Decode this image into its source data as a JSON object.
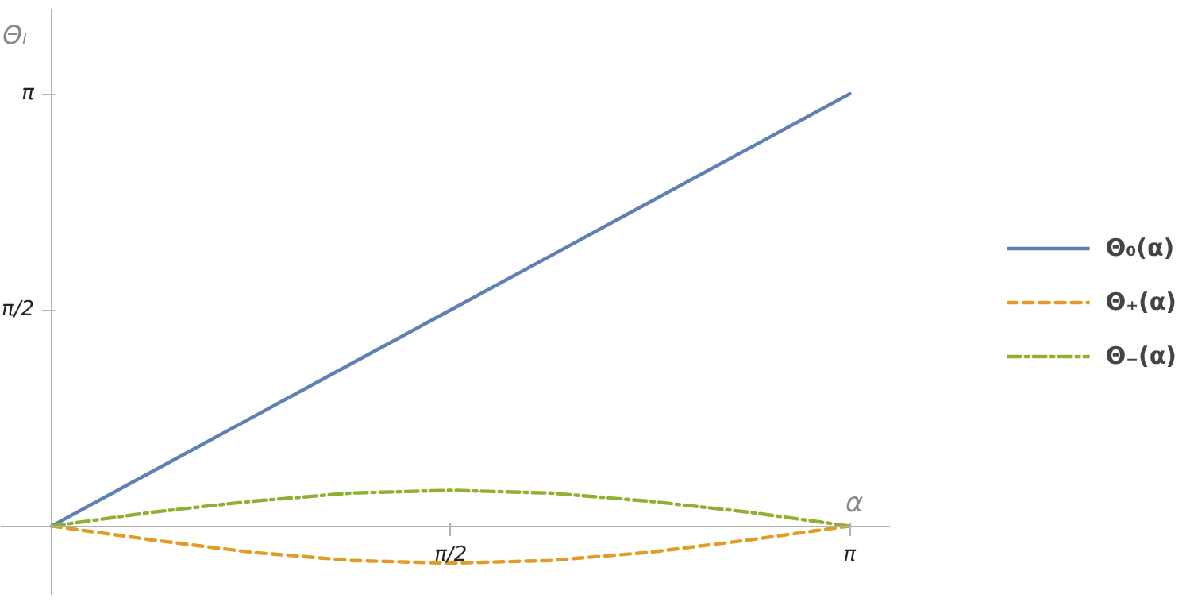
{
  "chart_data": {
    "type": "line",
    "xlabel": "α",
    "ylabel": "Θₗ",
    "x": [
      0,
      0.393,
      0.785,
      1.178,
      1.571,
      1.963,
      2.356,
      2.749,
      3.142
    ],
    "xlim": [
      -0.2,
      3.3
    ],
    "ylim": [
      -0.5,
      3.76
    ],
    "xticks": [
      {
        "value": 1.571,
        "label": "π/2"
      },
      {
        "value": 3.142,
        "label": "π"
      }
    ],
    "yticks": [
      {
        "value": 1.571,
        "label": "π/2"
      },
      {
        "value": 3.142,
        "label": "π"
      }
    ],
    "grid": false,
    "legend": "right",
    "marker": "none",
    "series": [
      {
        "name": "Θ₀(α)",
        "color": "#5e81b5",
        "line_style": "solid",
        "values": [
          0,
          0.393,
          0.785,
          1.178,
          1.571,
          1.963,
          2.356,
          2.749,
          3.142
        ]
      },
      {
        "name": "Θ₊(α)",
        "color": "#e19c24",
        "line_style": "dashed",
        "values": [
          0,
          -0.1,
          -0.19,
          -0.25,
          -0.27,
          -0.25,
          -0.19,
          -0.1,
          0
        ]
      },
      {
        "name": "Θ₋(α)",
        "color": "#8fb032",
        "line_style": "dashdot",
        "values": [
          0,
          0.1,
          0.18,
          0.24,
          0.26,
          0.24,
          0.18,
          0.1,
          0
        ]
      }
    ]
  }
}
